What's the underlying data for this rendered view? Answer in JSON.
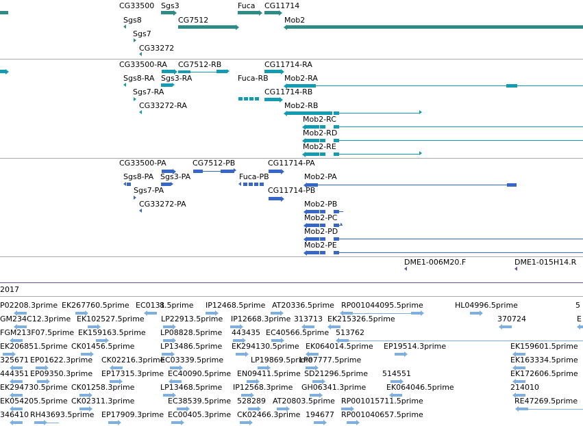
{
  "colors": {
    "gene": "#2e8b86",
    "transcript": "#159bb1",
    "protein": "#3866c6",
    "est": "#7fb0dd",
    "accent": "#6a4e9e",
    "divider": "#a8a8a8"
  },
  "genes": {
    "labels": [
      "CG33500",
      "Sgs3",
      "Fuca",
      "CG11714",
      "Sgs8",
      "CG7512",
      "Mob2",
      "Sgs7",
      "CG33272"
    ]
  },
  "transcripts": {
    "labels": [
      "CG33500-RA",
      "CG7512-RB",
      "CG11714-RA",
      "Sgs8-RA",
      "Sgs3-RA",
      "Fuca-RB",
      "Mob2-RA",
      "Sgs7-RA",
      "CG11714-RB",
      "CG33272-RA",
      "Mob2-RB",
      "Mob2-RC",
      "Mob2-RD",
      "Mob2-RE"
    ]
  },
  "proteins": {
    "labels": [
      "CG33500-PA",
      "CG7512-PB",
      "CG11714-PA",
      "Sgs8-PA",
      "Sgs3-PA",
      "Fuca-PB",
      "Mob2-PA",
      "Sgs7-PA",
      "CG11714-PB",
      "CG33272-PA",
      "Mob2-PB",
      "Mob2-PC",
      "Mob2-PD",
      "Mob2-PE"
    ]
  },
  "clones": {
    "labels": [
      "DME1-006M20.F",
      "DME1-015H14.R"
    ]
  },
  "scale": {
    "label": "2017"
  },
  "ests": {
    "labels": [
      "P02208.3prime",
      "EK267760.5prime",
      "EC0131",
      "8.5prime",
      "IP12468.5prime",
      "AT20336.5prime",
      "RP001044095.5prime",
      "HL04996.5prime",
      "5",
      "GM234C12.3prime",
      "EK102527.5prime",
      "LP22913.5prime",
      "IP12668.3prime",
      "313713",
      "EK215326.5prime",
      "370724",
      "E",
      "FGM213F07.5prime",
      "EK159163.5prime",
      "LP08828.5prime",
      "443435",
      "EC40566.5prime",
      "513762",
      "EK206851.5prime",
      "CK01456.5prime",
      "LP13486.5prime",
      "EK294130.5prime",
      "EK064014.5prime",
      "EP19514.3prime",
      "EK159601.5prime",
      "325671",
      "EP01622.3prime",
      "CK02216.3prime",
      "EC03339.5prime",
      "LP19869.5prime",
      "LP07777.5prime",
      "EK163334.5prime",
      "444351",
      "EP09350.3prime",
      "EP17315.3prime",
      "EC40090.5prime",
      "EN09411.5prime",
      "SD21296.5prime",
      "514551",
      "EK172606.5prime",
      "EK294730.5prime",
      "CK01258.3prime",
      "LP13468.5prime",
      "IP12568.3prime",
      "GH06341.3prime",
      "EK064046.5prime",
      "214010",
      "EK054205.5prime",
      "CK02311.3prime",
      "EC38539.5prime",
      "528289",
      "AT20803.5prime",
      "RP001015711.5prime",
      "RE47269.5prime",
      "346410",
      "RH43693.5prime",
      "EP17909.3prime",
      "EC00405.3prime",
      "CK02466.3prime",
      "194677",
      "RP001040657.5prime"
    ]
  }
}
